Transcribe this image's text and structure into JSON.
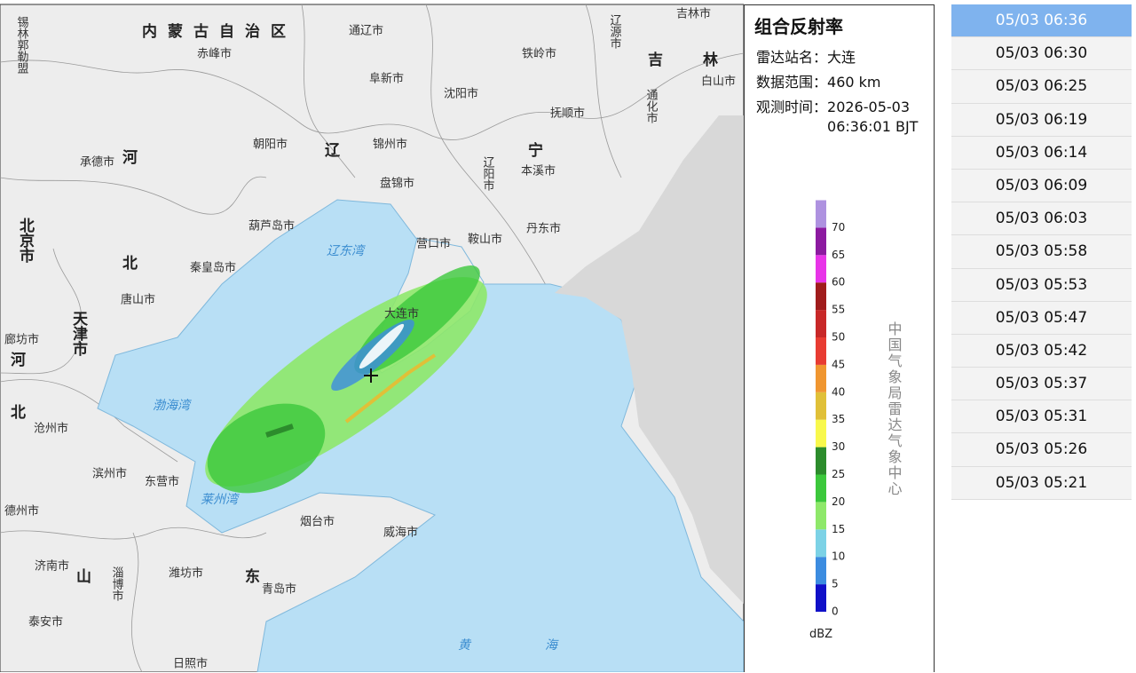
{
  "map": {
    "labels": [
      "锡林郭勒盟",
      "内蒙古自治区",
      "赤峰市",
      "通辽市",
      "阜新市",
      "沈阳市",
      "铁岭市",
      "辽源市",
      "吉林市",
      "吉",
      "林",
      "白山市",
      "抚顺市",
      "通化市",
      "承德市",
      "河",
      "朝阳市",
      "辽",
      "锦州市",
      "宁",
      "本溪市",
      "辽阳市",
      "盘锦市",
      "葫芦岛市",
      "辽东湾",
      "营口市",
      "鞍山市",
      "丹东市",
      "北京市",
      "北",
      "秦皇岛市",
      "唐山市",
      "天津市",
      "廊坊市",
      "河",
      "大连市",
      "渤海湾",
      "北",
      "沧州市",
      "滨州市",
      "东营市",
      "莱州湾",
      "烟台市",
      "威海市",
      "德州市",
      "济南市",
      "山",
      "淄博市",
      "潍坊市",
      "东",
      "青岛市",
      "泰安市",
      "黄",
      "海",
      "日照市"
    ]
  },
  "panel": {
    "title": "组合反射率",
    "station_label": "雷达站名：",
    "station": "大连",
    "range_label": "数据范围：",
    "range": "460 km",
    "time_label": "观测时间：",
    "time_lines": [
      "2026-05-03",
      "06:36:01 BJT"
    ],
    "legend": [
      {
        "value": 0,
        "color": "#1010c8"
      },
      {
        "value": 5,
        "color": "#3c8ce0"
      },
      {
        "value": 10,
        "color": "#7cd2e6"
      },
      {
        "value": 15,
        "color": "#8ee86a"
      },
      {
        "value": 20,
        "color": "#3cc83c"
      },
      {
        "value": 25,
        "color": "#2c8c2c"
      },
      {
        "value": 30,
        "color": "#f8f84c"
      },
      {
        "value": 35,
        "color": "#e0c038"
      },
      {
        "value": 40,
        "color": "#f09630"
      },
      {
        "value": 45,
        "color": "#e83c32"
      },
      {
        "value": 50,
        "color": "#c82828"
      },
      {
        "value": 55,
        "color": "#a01c1c"
      },
      {
        "value": 60,
        "color": "#e834e8"
      },
      {
        "value": 65,
        "color": "#8c1aa0"
      },
      {
        "value": 70,
        "color": "#ae92e0"
      }
    ],
    "unit": "dBZ",
    "credit": "中国气象局雷达气象中心"
  },
  "times": {
    "selected": 0,
    "items": [
      "05/03 06:36",
      "05/03 06:30",
      "05/03 06:25",
      "05/03 06:19",
      "05/03 06:14",
      "05/03 06:09",
      "05/03 06:03",
      "05/03 05:58",
      "05/03 05:53",
      "05/03 05:47",
      "05/03 05:42",
      "05/03 05:37",
      "05/03 05:31",
      "05/03 05:26",
      "05/03 05:21"
    ]
  }
}
